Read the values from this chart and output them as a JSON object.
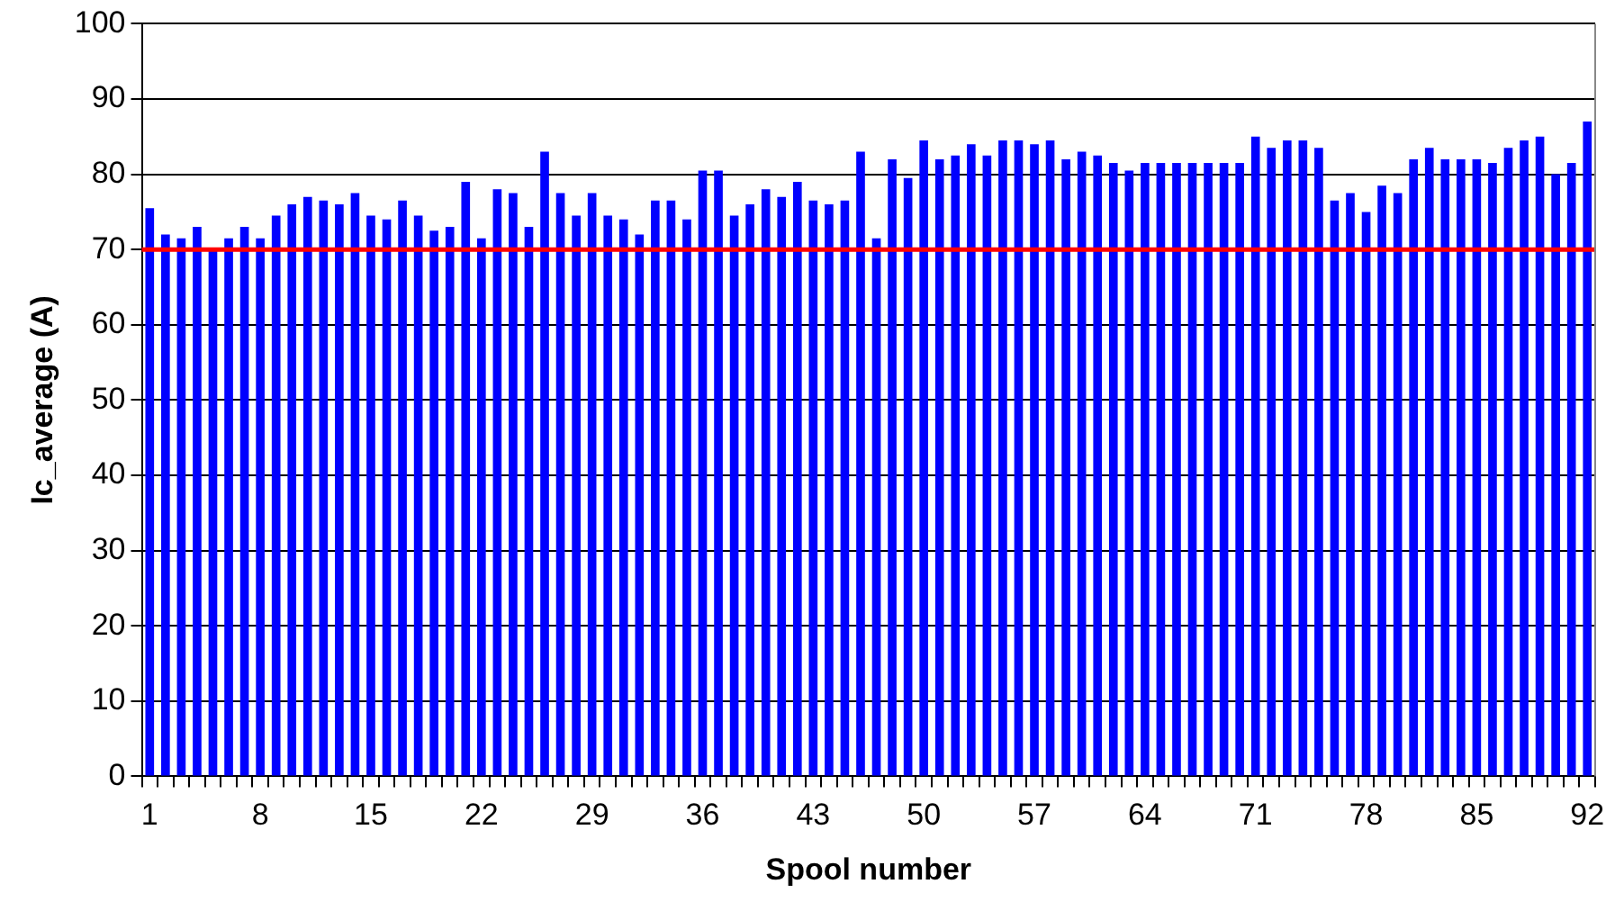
{
  "chart_data": {
    "type": "bar",
    "xlabel": "Spool number",
    "ylabel": "Ic_average (A)",
    "categories": [
      "1",
      null,
      null,
      null,
      null,
      null,
      null,
      "8",
      null,
      null,
      null,
      null,
      null,
      null,
      "15",
      null,
      null,
      null,
      null,
      null,
      null,
      "22",
      null,
      null,
      null,
      null,
      null,
      null,
      "29",
      null,
      null,
      null,
      null,
      null,
      null,
      "36",
      null,
      null,
      null,
      null,
      null,
      null,
      "43",
      null,
      null,
      null,
      null,
      null,
      null,
      "50",
      null,
      null,
      null,
      null,
      null,
      null,
      "57",
      null,
      null,
      null,
      null,
      null,
      null,
      "64",
      null,
      null,
      null,
      null,
      null,
      null,
      "71",
      null,
      null,
      null,
      null,
      null,
      null,
      "78",
      null,
      null,
      null,
      null,
      null,
      null,
      "85",
      null,
      null,
      null,
      null,
      null,
      null,
      "92"
    ],
    "values": [
      75.5,
      72,
      71.5,
      73,
      70,
      71.5,
      73,
      71.5,
      74.5,
      76,
      77,
      76.5,
      76,
      77.5,
      74.5,
      74,
      76.5,
      74.5,
      72.5,
      73,
      79,
      71.5,
      78,
      77.5,
      73,
      83,
      77.5,
      74.5,
      77.5,
      74.5,
      74,
      72,
      76.5,
      76.5,
      74,
      80.5,
      80.5,
      74.5,
      76,
      78,
      77,
      79,
      76.5,
      76,
      76.5,
      83,
      71.5,
      82,
      79.5,
      84.5,
      82,
      82.5,
      84,
      82.5,
      84.5,
      84.5,
      84,
      84.5,
      82,
      83,
      82.5,
      81.5,
      80.5,
      81.5,
      81.5,
      81.5,
      81.5,
      81.5,
      81.5,
      81.5,
      85,
      83.5,
      84.5,
      84.5,
      83.5,
      76.5,
      77.5,
      75,
      78.5,
      77.5,
      82,
      83.5,
      82,
      82,
      82,
      81.5,
      83.5,
      84.5,
      85,
      80,
      81.5,
      87
    ],
    "color": "#0000ff",
    "ylim": [
      0,
      100
    ],
    "yticks": [
      0,
      10,
      20,
      30,
      40,
      50,
      60,
      70,
      80,
      90,
      100
    ],
    "grid": "y",
    "legend": false,
    "ref_lines": [
      {
        "axis": "y",
        "value": 70,
        "color": "#ff0000"
      }
    ]
  }
}
